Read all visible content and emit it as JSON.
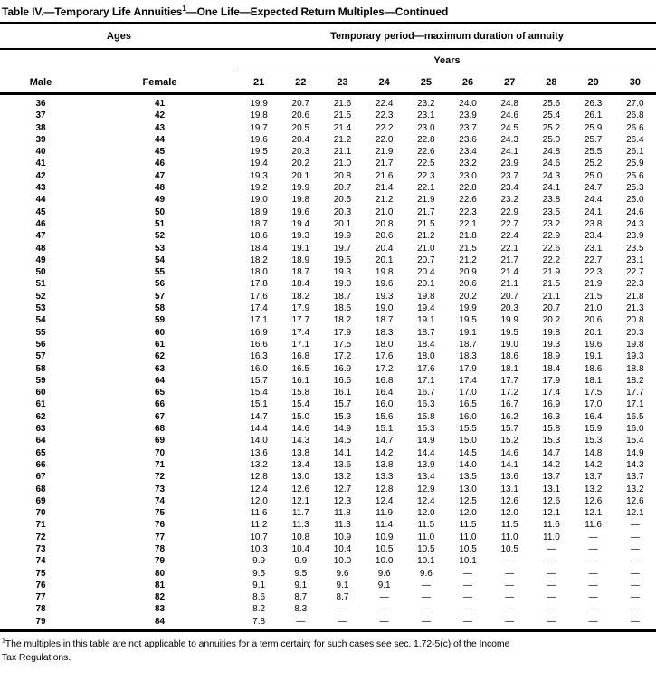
{
  "title": {
    "prefix": "Table IV.—Temporary Life Annuities",
    "superscript": "1",
    "suffix": "—One Life—Expected Return Multiples—Continued"
  },
  "header": {
    "ages_label": "Ages",
    "period_label": "Temporary period—maximum duration of annuity",
    "years_label": "Years",
    "male_label": "Male",
    "female_label": "Female",
    "year_columns": [
      "21",
      "22",
      "23",
      "24",
      "25",
      "26",
      "27",
      "28",
      "29",
      "30"
    ]
  },
  "rows": [
    {
      "male": "36",
      "female": "41",
      "values": [
        "19.9",
        "20.7",
        "21.6",
        "22.4",
        "23.2",
        "24.0",
        "24.8",
        "25.6",
        "26.3",
        "27.0"
      ]
    },
    {
      "male": "37",
      "female": "42",
      "values": [
        "19.8",
        "20.6",
        "21.5",
        "22.3",
        "23.1",
        "23.9",
        "24.6",
        "25.4",
        "26.1",
        "26.8"
      ]
    },
    {
      "male": "38",
      "female": "43",
      "values": [
        "19.7",
        "20.5",
        "21.4",
        "22.2",
        "23.0",
        "23.7",
        "24.5",
        "25.2",
        "25.9",
        "26.6"
      ]
    },
    {
      "male": "39",
      "female": "44",
      "values": [
        "19.6",
        "20.4",
        "21.2",
        "22.0",
        "22.8",
        "23.6",
        "24.3",
        "25.0",
        "25.7",
        "26.4"
      ]
    },
    {
      "male": "40",
      "female": "45",
      "values": [
        "19.5",
        "20.3",
        "21.1",
        "21.9",
        "22.6",
        "23.4",
        "24.1",
        "24.8",
        "25.5",
        "26.1"
      ]
    },
    {
      "male": "41",
      "female": "46",
      "values": [
        "19.4",
        "20.2",
        "21.0",
        "21.7",
        "22.5",
        "23.2",
        "23.9",
        "24.6",
        "25.2",
        "25.9"
      ]
    },
    {
      "male": "42",
      "female": "47",
      "values": [
        "19.3",
        "20.1",
        "20.8",
        "21.6",
        "22.3",
        "23.0",
        "23.7",
        "24.3",
        "25.0",
        "25.6"
      ]
    },
    {
      "male": "43",
      "female": "48",
      "values": [
        "19.2",
        "19.9",
        "20.7",
        "21.4",
        "22.1",
        "22.8",
        "23.4",
        "24.1",
        "24.7",
        "25.3"
      ]
    },
    {
      "male": "44",
      "female": "49",
      "values": [
        "19.0",
        "19.8",
        "20.5",
        "21.2",
        "21.9",
        "22.6",
        "23.2",
        "23.8",
        "24.4",
        "25.0"
      ]
    },
    {
      "male": "45",
      "female": "50",
      "values": [
        "18.9",
        "19.6",
        "20.3",
        "21.0",
        "21.7",
        "22.3",
        "22.9",
        "23.5",
        "24.1",
        "24.6"
      ]
    },
    {
      "male": "46",
      "female": "51",
      "values": [
        "18.7",
        "19.4",
        "20.1",
        "20.8",
        "21.5",
        "22.1",
        "22.7",
        "23.2",
        "23.8",
        "24.3"
      ]
    },
    {
      "male": "47",
      "female": "52",
      "values": [
        "18.6",
        "19.3",
        "19.9",
        "20.6",
        "21.2",
        "21.8",
        "22.4",
        "22.9",
        "23.4",
        "23.9"
      ]
    },
    {
      "male": "48",
      "female": "53",
      "values": [
        "18.4",
        "19.1",
        "19.7",
        "20.4",
        "21.0",
        "21.5",
        "22.1",
        "22.6",
        "23.1",
        "23.5"
      ]
    },
    {
      "male": "49",
      "female": "54",
      "values": [
        "18.2",
        "18.9",
        "19.5",
        "20.1",
        "20.7",
        "21.2",
        "21.7",
        "22.2",
        "22.7",
        "23.1"
      ]
    },
    {
      "male": "50",
      "female": "55",
      "values": [
        "18.0",
        "18.7",
        "19.3",
        "19.8",
        "20.4",
        "20.9",
        "21.4",
        "21.9",
        "22.3",
        "22.7"
      ]
    },
    {
      "male": "51",
      "female": "56",
      "values": [
        "17.8",
        "18.4",
        "19.0",
        "19.6",
        "20.1",
        "20.6",
        "21.1",
        "21.5",
        "21.9",
        "22.3"
      ]
    },
    {
      "male": "52",
      "female": "57",
      "values": [
        "17.6",
        "18.2",
        "18.7",
        "19.3",
        "19.8",
        "20.2",
        "20.7",
        "21.1",
        "21.5",
        "21.8"
      ]
    },
    {
      "male": "53",
      "female": "58",
      "values": [
        "17.4",
        "17.9",
        "18.5",
        "19.0",
        "19.4",
        "19.9",
        "20.3",
        "20.7",
        "21.0",
        "21.3"
      ]
    },
    {
      "male": "54",
      "female": "59",
      "values": [
        "17.1",
        "17.7",
        "18.2",
        "18.7",
        "19.1",
        "19.5",
        "19.9",
        "20.2",
        "20.6",
        "20.8"
      ]
    },
    {
      "male": "55",
      "female": "60",
      "values": [
        "16.9",
        "17.4",
        "17.9",
        "18.3",
        "18.7",
        "19.1",
        "19.5",
        "19.8",
        "20.1",
        "20.3"
      ]
    },
    {
      "male": "56",
      "female": "61",
      "values": [
        "16.6",
        "17.1",
        "17.5",
        "18.0",
        "18.4",
        "18.7",
        "19.0",
        "19.3",
        "19.6",
        "19.8"
      ]
    },
    {
      "male": "57",
      "female": "62",
      "values": [
        "16.3",
        "16.8",
        "17.2",
        "17.6",
        "18.0",
        "18.3",
        "18.6",
        "18.9",
        "19.1",
        "19.3"
      ]
    },
    {
      "male": "58",
      "female": "63",
      "values": [
        "16.0",
        "16.5",
        "16.9",
        "17.2",
        "17.6",
        "17.9",
        "18.1",
        "18.4",
        "18.6",
        "18.8"
      ]
    },
    {
      "male": "59",
      "female": "64",
      "values": [
        "15.7",
        "16.1",
        "16.5",
        "16.8",
        "17.1",
        "17.4",
        "17.7",
        "17.9",
        "18.1",
        "18.2"
      ]
    },
    {
      "male": "60",
      "female": "65",
      "values": [
        "15.4",
        "15.8",
        "16.1",
        "16.4",
        "16.7",
        "17.0",
        "17.2",
        "17.4",
        "17.5",
        "17.7"
      ]
    },
    {
      "male": "61",
      "female": "66",
      "values": [
        "15.1",
        "15.4",
        "15.7",
        "16.0",
        "16.3",
        "16.5",
        "16.7",
        "16.9",
        "17.0",
        "17.1"
      ]
    },
    {
      "male": "62",
      "female": "67",
      "values": [
        "14.7",
        "15.0",
        "15.3",
        "15.6",
        "15.8",
        "16.0",
        "16.2",
        "16.3",
        "16.4",
        "16.5"
      ]
    },
    {
      "male": "63",
      "female": "68",
      "values": [
        "14.4",
        "14.6",
        "14.9",
        "15.1",
        "15.3",
        "15.5",
        "15.7",
        "15.8",
        "15.9",
        "16.0"
      ]
    },
    {
      "male": "64",
      "female": "69",
      "values": [
        "14.0",
        "14.3",
        "14.5",
        "14.7",
        "14.9",
        "15.0",
        "15.2",
        "15.3",
        "15.3",
        "15.4"
      ]
    },
    {
      "male": "65",
      "female": "70",
      "values": [
        "13.6",
        "13.8",
        "14.1",
        "14.2",
        "14.4",
        "14.5",
        "14.6",
        "14.7",
        "14.8",
        "14.9"
      ]
    },
    {
      "male": "66",
      "female": "71",
      "values": [
        "13.2",
        "13.4",
        "13.6",
        "13.8",
        "13.9",
        "14.0",
        "14.1",
        "14.2",
        "14.2",
        "14.3"
      ]
    },
    {
      "male": "67",
      "female": "72",
      "values": [
        "12.8",
        "13.0",
        "13.2",
        "13.3",
        "13.4",
        "13.5",
        "13.6",
        "13.7",
        "13.7",
        "13.7"
      ]
    },
    {
      "male": "68",
      "female": "73",
      "values": [
        "12.4",
        "12.6",
        "12.7",
        "12.8",
        "12.9",
        "13.0",
        "13.1",
        "13.1",
        "13.2",
        "13.2"
      ]
    },
    {
      "male": "69",
      "female": "74",
      "values": [
        "12.0",
        "12.1",
        "12.3",
        "12.4",
        "12.4",
        "12.5",
        "12.6",
        "12.6",
        "12.6",
        "12.6"
      ]
    },
    {
      "male": "70",
      "female": "75",
      "values": [
        "11.6",
        "11.7",
        "11.8",
        "11.9",
        "12.0",
        "12.0",
        "12.0",
        "12.1",
        "12.1",
        "12.1"
      ]
    },
    {
      "male": "71",
      "female": "76",
      "values": [
        "11.2",
        "11.3",
        "11.3",
        "11.4",
        "11.5",
        "11.5",
        "11.5",
        "11.6",
        "11.6",
        "—"
      ]
    },
    {
      "male": "72",
      "female": "77",
      "values": [
        "10.7",
        "10.8",
        "10.9",
        "10.9",
        "11.0",
        "11.0",
        "11.0",
        "11.0",
        "—",
        "—"
      ]
    },
    {
      "male": "73",
      "female": "78",
      "values": [
        "10.3",
        "10.4",
        "10.4",
        "10.5",
        "10.5",
        "10.5",
        "10.5",
        "—",
        "—",
        "—"
      ]
    },
    {
      "male": "74",
      "female": "79",
      "values": [
        "9.9",
        "9.9",
        "10.0",
        "10.0",
        "10.1",
        "10.1",
        "—",
        "—",
        "—",
        "—"
      ]
    },
    {
      "male": "75",
      "female": "80",
      "values": [
        "9.5",
        "9.5",
        "9.6",
        "9.6",
        "9.6",
        "—",
        "—",
        "—",
        "—",
        "—"
      ]
    },
    {
      "male": "76",
      "female": "81",
      "values": [
        "9.1",
        "9.1",
        "9.1",
        "9.1",
        "—",
        "—",
        "—",
        "—",
        "—",
        "—"
      ]
    },
    {
      "male": "77",
      "female": "82",
      "values": [
        "8.6",
        "8.7",
        "8.7",
        "—",
        "—",
        "—",
        "—",
        "—",
        "—",
        "—"
      ]
    },
    {
      "male": "78",
      "female": "83",
      "values": [
        "8.2",
        "8.3",
        "—",
        "—",
        "—",
        "—",
        "—",
        "—",
        "—",
        "—"
      ]
    },
    {
      "male": "79",
      "female": "84",
      "values": [
        "7.8",
        "—",
        "—",
        "—",
        "—",
        "—",
        "—",
        "—",
        "—",
        "—"
      ]
    }
  ],
  "footnote": {
    "superscript": "1",
    "line1": "The multiples in this table are not applicable to annuities for a term certain; for such cases see sec. 1.72-5(c) of the Income",
    "line2": "Tax Regulations."
  },
  "colors": {
    "text": "#000000",
    "background": "#ffffff",
    "rule": "#000000"
  }
}
